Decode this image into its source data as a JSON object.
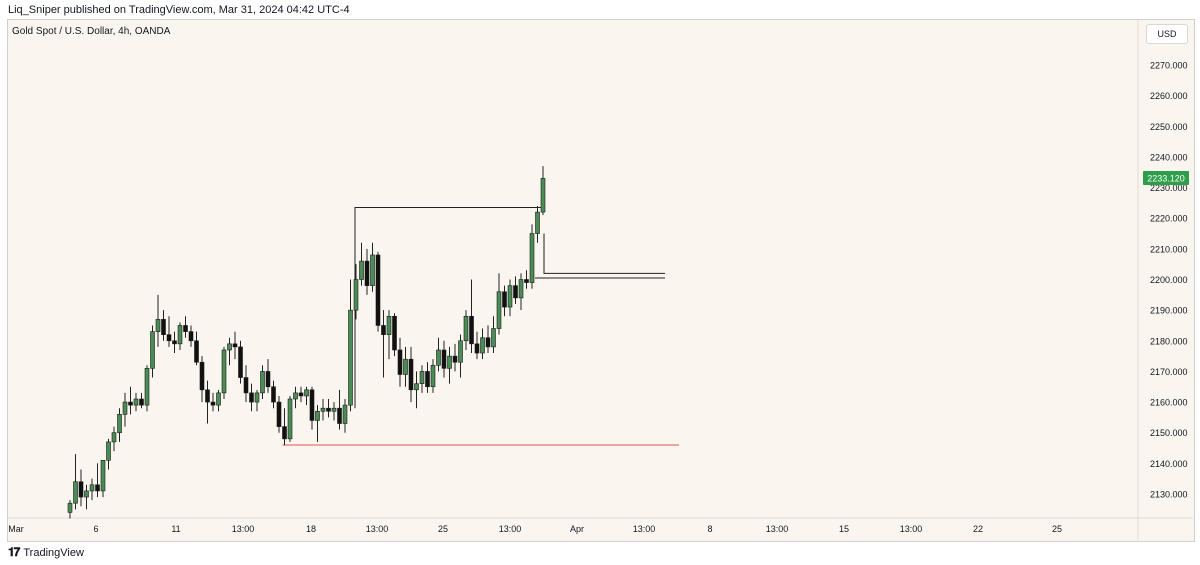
{
  "header": {
    "publisher_line": "Liq_Sniper published on TradingView.com, Mar 31, 2024 04:42 UTC-4"
  },
  "symbol": {
    "title": "Gold Spot / U.S. Dollar, 4h, OANDA",
    "currency": "USD"
  },
  "footer": {
    "logo_text": "TradingView",
    "logo_icon": "tradingview-logo-icon"
  },
  "colors": {
    "up": "#4a8c55",
    "down": "#111111",
    "last_price_bg": "#2e9e4a",
    "support_line": "#d9574e",
    "box_line": "#222222",
    "background": "#faf6ef"
  },
  "chart_data": {
    "type": "candlestick",
    "y_axis_ticks": [
      "2270.000",
      "2260.000",
      "2250.000",
      "2240.000",
      "2230.000",
      "2220.000",
      "2210.000",
      "2200.000",
      "2190.000",
      "2180.000",
      "2170.000",
      "2160.000",
      "2150.000",
      "2140.000",
      "2130.000"
    ],
    "x_axis_ticks": [
      "Mar",
      "6",
      "11",
      "13:00",
      "18",
      "13:00",
      "25",
      "13:00",
      "Apr",
      "13:00",
      "8",
      "13:00",
      "15",
      "13:00",
      "22",
      "25"
    ],
    "ylim": [
      2123,
      2277
    ],
    "last_price_label": "2233.120",
    "candles": [
      {
        "o": 2124,
        "h": 2128,
        "l": 2122,
        "c": 2127
      },
      {
        "o": 2127,
        "h": 2143,
        "l": 2125,
        "c": 2134
      },
      {
        "o": 2134,
        "h": 2138,
        "l": 2126,
        "c": 2129
      },
      {
        "o": 2129,
        "h": 2133,
        "l": 2125,
        "c": 2131
      },
      {
        "o": 2131,
        "h": 2135,
        "l": 2128,
        "c": 2133
      },
      {
        "o": 2133,
        "h": 2140,
        "l": 2129,
        "c": 2131
      },
      {
        "o": 2131,
        "h": 2141,
        "l": 2129,
        "c": 2141
      },
      {
        "o": 2141,
        "h": 2148,
        "l": 2138,
        "c": 2147
      },
      {
        "o": 2147,
        "h": 2152,
        "l": 2144,
        "c": 2150
      },
      {
        "o": 2150,
        "h": 2158,
        "l": 2147,
        "c": 2156
      },
      {
        "o": 2156,
        "h": 2163,
        "l": 2152,
        "c": 2160
      },
      {
        "o": 2160,
        "h": 2165,
        "l": 2156,
        "c": 2159
      },
      {
        "o": 2159,
        "h": 2163,
        "l": 2157,
        "c": 2161
      },
      {
        "o": 2161,
        "h": 2163,
        "l": 2158,
        "c": 2159
      },
      {
        "o": 2159,
        "h": 2172,
        "l": 2157,
        "c": 2171
      },
      {
        "o": 2171,
        "h": 2185,
        "l": 2168,
        "c": 2183
      },
      {
        "o": 2183,
        "h": 2195,
        "l": 2178,
        "c": 2187
      },
      {
        "o": 2187,
        "h": 2190,
        "l": 2180,
        "c": 2182
      },
      {
        "o": 2182,
        "h": 2188,
        "l": 2178,
        "c": 2180
      },
      {
        "o": 2180,
        "h": 2183,
        "l": 2176,
        "c": 2179
      },
      {
        "o": 2179,
        "h": 2186,
        "l": 2177,
        "c": 2185
      },
      {
        "o": 2185,
        "h": 2188,
        "l": 2181,
        "c": 2183
      },
      {
        "o": 2183,
        "h": 2185,
        "l": 2178,
        "c": 2180
      },
      {
        "o": 2180,
        "h": 2183,
        "l": 2172,
        "c": 2173
      },
      {
        "o": 2173,
        "h": 2175,
        "l": 2160,
        "c": 2164
      },
      {
        "o": 2164,
        "h": 2167,
        "l": 2153,
        "c": 2160
      },
      {
        "o": 2160,
        "h": 2163,
        "l": 2157,
        "c": 2159
      },
      {
        "o": 2159,
        "h": 2164,
        "l": 2157,
        "c": 2163
      },
      {
        "o": 2163,
        "h": 2178,
        "l": 2161,
        "c": 2177
      },
      {
        "o": 2177,
        "h": 2181,
        "l": 2172,
        "c": 2179
      },
      {
        "o": 2179,
        "h": 2183,
        "l": 2174,
        "c": 2178
      },
      {
        "o": 2178,
        "h": 2180,
        "l": 2166,
        "c": 2168
      },
      {
        "o": 2168,
        "h": 2172,
        "l": 2160,
        "c": 2163
      },
      {
        "o": 2163,
        "h": 2166,
        "l": 2157,
        "c": 2160
      },
      {
        "o": 2160,
        "h": 2164,
        "l": 2157,
        "c": 2163
      },
      {
        "o": 2163,
        "h": 2172,
        "l": 2161,
        "c": 2170
      },
      {
        "o": 2170,
        "h": 2174,
        "l": 2163,
        "c": 2165
      },
      {
        "o": 2165,
        "h": 2167,
        "l": 2158,
        "c": 2160
      },
      {
        "o": 2160,
        "h": 2162,
        "l": 2150,
        "c": 2152
      },
      {
        "o": 2152,
        "h": 2158,
        "l": 2146,
        "c": 2148
      },
      {
        "o": 2148,
        "h": 2162,
        "l": 2147,
        "c": 2161
      },
      {
        "o": 2161,
        "h": 2165,
        "l": 2158,
        "c": 2163
      },
      {
        "o": 2163,
        "h": 2165,
        "l": 2160,
        "c": 2162
      },
      {
        "o": 2162,
        "h": 2165,
        "l": 2159,
        "c": 2164
      },
      {
        "o": 2164,
        "h": 2165,
        "l": 2151,
        "c": 2154
      },
      {
        "o": 2154,
        "h": 2159,
        "l": 2147,
        "c": 2157
      },
      {
        "o": 2157,
        "h": 2161,
        "l": 2154,
        "c": 2158
      },
      {
        "o": 2158,
        "h": 2161,
        "l": 2155,
        "c": 2157
      },
      {
        "o": 2157,
        "h": 2160,
        "l": 2154,
        "c": 2158
      },
      {
        "o": 2158,
        "h": 2164,
        "l": 2151,
        "c": 2153
      },
      {
        "o": 2153,
        "h": 2161,
        "l": 2150,
        "c": 2159
      },
      {
        "o": 2159,
        "h": 2200,
        "l": 2157,
        "c": 2190
      },
      {
        "o": 2190,
        "h": 2205,
        "l": 2187,
        "c": 2200
      },
      {
        "o": 2200,
        "h": 2212,
        "l": 2198,
        "c": 2206
      },
      {
        "o": 2206,
        "h": 2210,
        "l": 2195,
        "c": 2198
      },
      {
        "o": 2198,
        "h": 2212,
        "l": 2196,
        "c": 2208
      },
      {
        "o": 2208,
        "h": 2209,
        "l": 2183,
        "c": 2185
      },
      {
        "o": 2185,
        "h": 2190,
        "l": 2168,
        "c": 2182
      },
      {
        "o": 2182,
        "h": 2190,
        "l": 2174,
        "c": 2188
      },
      {
        "o": 2188,
        "h": 2189,
        "l": 2175,
        "c": 2177
      },
      {
        "o": 2177,
        "h": 2181,
        "l": 2165,
        "c": 2169
      },
      {
        "o": 2169,
        "h": 2178,
        "l": 2165,
        "c": 2174
      },
      {
        "o": 2174,
        "h": 2178,
        "l": 2160,
        "c": 2164
      },
      {
        "o": 2164,
        "h": 2170,
        "l": 2158,
        "c": 2166
      },
      {
        "o": 2166,
        "h": 2172,
        "l": 2163,
        "c": 2170
      },
      {
        "o": 2170,
        "h": 2173,
        "l": 2163,
        "c": 2165
      },
      {
        "o": 2165,
        "h": 2174,
        "l": 2163,
        "c": 2172
      },
      {
        "o": 2172,
        "h": 2181,
        "l": 2170,
        "c": 2177
      },
      {
        "o": 2177,
        "h": 2180,
        "l": 2168,
        "c": 2171
      },
      {
        "o": 2171,
        "h": 2178,
        "l": 2166,
        "c": 2175
      },
      {
        "o": 2175,
        "h": 2179,
        "l": 2170,
        "c": 2173
      },
      {
        "o": 2173,
        "h": 2182,
        "l": 2168,
        "c": 2180
      },
      {
        "o": 2180,
        "h": 2190,
        "l": 2177,
        "c": 2188
      },
      {
        "o": 2188,
        "h": 2200,
        "l": 2176,
        "c": 2179
      },
      {
        "o": 2179,
        "h": 2183,
        "l": 2174,
        "c": 2176
      },
      {
        "o": 2176,
        "h": 2184,
        "l": 2174,
        "c": 2181
      },
      {
        "o": 2181,
        "h": 2185,
        "l": 2176,
        "c": 2178
      },
      {
        "o": 2178,
        "h": 2188,
        "l": 2176,
        "c": 2184
      },
      {
        "o": 2184,
        "h": 2202,
        "l": 2182,
        "c": 2196
      },
      {
        "o": 2196,
        "h": 2198,
        "l": 2188,
        "c": 2191
      },
      {
        "o": 2191,
        "h": 2200,
        "l": 2188,
        "c": 2198
      },
      {
        "o": 2198,
        "h": 2201,
        "l": 2192,
        "c": 2194
      },
      {
        "o": 2194,
        "h": 2202,
        "l": 2190,
        "c": 2200
      },
      {
        "o": 2200,
        "h": 2203,
        "l": 2197,
        "c": 2199
      },
      {
        "o": 2199,
        "h": 2218,
        "l": 2197,
        "c": 2215
      },
      {
        "o": 2215,
        "h": 2224,
        "l": 2212,
        "c": 2222
      },
      {
        "o": 2222,
        "h": 2237,
        "l": 2221,
        "c": 2233
      }
    ],
    "annotations": [
      {
        "type": "range_box",
        "top_price": 2223.5,
        "start_candle": 52,
        "end_candle": 86
      },
      {
        "type": "zone",
        "prices": [
          2202,
          2200.5
        ],
        "start_candle": 86,
        "end_candle": 108
      },
      {
        "type": "support_line",
        "price": 2146,
        "start_candle": 39,
        "end_candle": 121
      }
    ]
  }
}
